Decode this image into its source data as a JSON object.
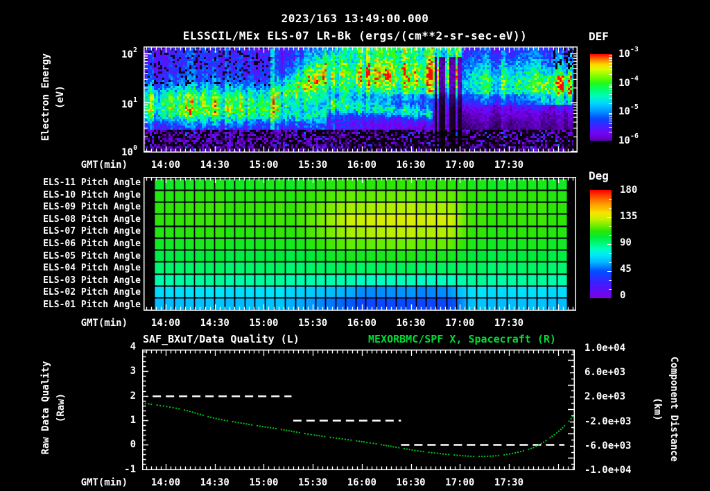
{
  "header": {
    "timestamp": "2023/163 13:49:00.000",
    "title": "ELSSCIL/MEx ELS-07 LR-Bk  (ergs/(cm**2-sr-sec-eV))"
  },
  "time_axis": {
    "label": "GMT(min)",
    "ticks": [
      "14:00",
      "14:30",
      "15:00",
      "15:30",
      "16:00",
      "16:30",
      "17:00",
      "17:30"
    ]
  },
  "energy_panel": {
    "y_label": "Electron Energy",
    "y_unit": "(eV)",
    "y_tick_exponents": [
      2,
      1,
      0
    ],
    "colorbar": {
      "title": "DEF",
      "tick_exponents": [
        -3,
        -4,
        -5,
        -6
      ]
    }
  },
  "pitch_panel": {
    "colorbar": {
      "title": "Deg",
      "ticks": [
        "180",
        "135",
        "90",
        "45",
        "0"
      ]
    }
  },
  "quality_panel": {
    "left_title": "SAF_BXuT/Data Quality (L)",
    "right_title": "MEXORBMC/SPF X, Spacecraft (R)",
    "left_axis": {
      "label": "Raw Data Quality",
      "unit": "(Raw)",
      "ticks": [
        "4",
        "3",
        "2",
        "1",
        "0",
        "-1"
      ]
    },
    "right_axis": {
      "label": "Component Distance",
      "unit": "(km)",
      "ticks": [
        "1.0e+04",
        "6.0e+03",
        "2.0e+03",
        "-2.0e+03",
        "-6.0e+03",
        "-1.0e+04"
      ]
    }
  },
  "colors": {
    "background": "#000000",
    "text": "#ffffff",
    "title_green": "#00dd33",
    "curve_green": "#00c81e",
    "quality_dash_white": "#ffffff"
  },
  "chart_data": [
    {
      "type": "heatmap",
      "panel": "electron_energy_spectrogram",
      "title": "ELSSCIL/MEx ELS-07 LR-Bk",
      "units": "ergs/(cm**2-sr-sec-eV)",
      "x_axis": "GMT(min)",
      "x_ticks": [
        "14:00",
        "14:30",
        "15:00",
        "15:30",
        "16:00",
        "16:30",
        "17:00",
        "17:30"
      ],
      "x_range": [
        "13:46",
        "18:10"
      ],
      "y_axis": "Electron Energy (eV)",
      "y_scale": "log",
      "y_ticks": [
        1,
        10,
        100
      ],
      "color_scale": {
        "title": "DEF",
        "min": 1e-06,
        "max": 0.001,
        "ticks": [
          0.001,
          0.0001,
          1e-05,
          1e-06
        ]
      },
      "features": [
        "Before ~15:00: bright cyan-green flux band near 7-15 eV, blue noisy background above, dark speckled region below ~3 eV",
        "~15:00-16:45: enhanced green flux (~1e-4) spreading to 20-100 eV",
        "~16:45-17:10: intermittent near-black vertical dropouts with bright green columns at top energies",
        "After ~17:10: moderate blue-cyan flux with a green patch near 10-30 eV at far right"
      ]
    },
    {
      "type": "heatmap",
      "panel": "pitch_angle",
      "x_axis": "GMT(min)",
      "x_range": [
        "13:50",
        "18:05"
      ],
      "color_scale": {
        "title": "Deg",
        "min": 0,
        "max": 180,
        "ticks": [
          180,
          135,
          90,
          45,
          0
        ]
      },
      "mid_interval": [
        "15:30",
        "16:50"
      ],
      "rows": [
        {
          "label": "ELS-11 Pitch Angle",
          "baseline_deg": 107,
          "mid_interval_deg": 112
        },
        {
          "label": "ELS-10 Pitch Angle",
          "baseline_deg": 111,
          "mid_interval_deg": 120
        },
        {
          "label": "ELS-09 Pitch Angle",
          "baseline_deg": 113,
          "mid_interval_deg": 129
        },
        {
          "label": "ELS-08 Pitch Angle",
          "baseline_deg": 113,
          "mid_interval_deg": 135
        },
        {
          "label": "ELS-07 Pitch Angle",
          "baseline_deg": 111,
          "mid_interval_deg": 130
        },
        {
          "label": "ELS-06 Pitch Angle",
          "baseline_deg": 107,
          "mid_interval_deg": 120
        },
        {
          "label": "ELS-05 Pitch Angle",
          "baseline_deg": 101,
          "mid_interval_deg": 108
        },
        {
          "label": "ELS-04 Pitch Angle",
          "baseline_deg": 94,
          "mid_interval_deg": 96
        },
        {
          "label": "ELS-03 Pitch Angle",
          "baseline_deg": 86,
          "mid_interval_deg": 82
        },
        {
          "label": "ELS-02 Pitch Angle",
          "baseline_deg": 70,
          "mid_interval_deg": 54
        },
        {
          "label": "ELS-01 Pitch Angle",
          "baseline_deg": 62,
          "mid_interval_deg": 42
        }
      ]
    },
    {
      "type": "line",
      "panel": "quality_and_distance",
      "left_axis": {
        "label": "Raw Data Quality (Raw)",
        "range": [
          -1,
          4
        ]
      },
      "right_axis": {
        "label": "Component Distance (km)",
        "range": [
          -10000,
          10000
        ]
      },
      "series": [
        {
          "name": "SAF_BXuT/Data Quality (L)",
          "axis": "left",
          "style": "dashed",
          "color": "#ffffff",
          "segments": [
            {
              "value": 2,
              "from": "13:52",
              "to": "15:17"
            },
            {
              "value": 1,
              "from": "15:18",
              "to": "16:24"
            },
            {
              "value": 0,
              "from": "16:24",
              "to": "18:04"
            }
          ]
        },
        {
          "name": "MEXORBMC/SPF X, Spacecraft (R)",
          "axis": "right",
          "style": "dotted",
          "color": "#00c81e",
          "points": [
            [
              "13:46",
              1000
            ],
            [
              "14:09",
              0
            ],
            [
              "14:30",
              -1500
            ],
            [
              "14:51",
              -2500
            ],
            [
              "15:10",
              -3300
            ],
            [
              "15:31",
              -4250
            ],
            [
              "16:02",
              -5400
            ],
            [
              "16:20",
              -6200
            ],
            [
              "16:36",
              -6900
            ],
            [
              "16:54",
              -7450
            ],
            [
              "17:11",
              -7750
            ],
            [
              "17:28",
              -7450
            ],
            [
              "17:45",
              -6300
            ],
            [
              "17:57",
              -4350
            ],
            [
              "18:04",
              -2750
            ],
            [
              "18:10",
              -1000
            ]
          ]
        }
      ]
    }
  ]
}
